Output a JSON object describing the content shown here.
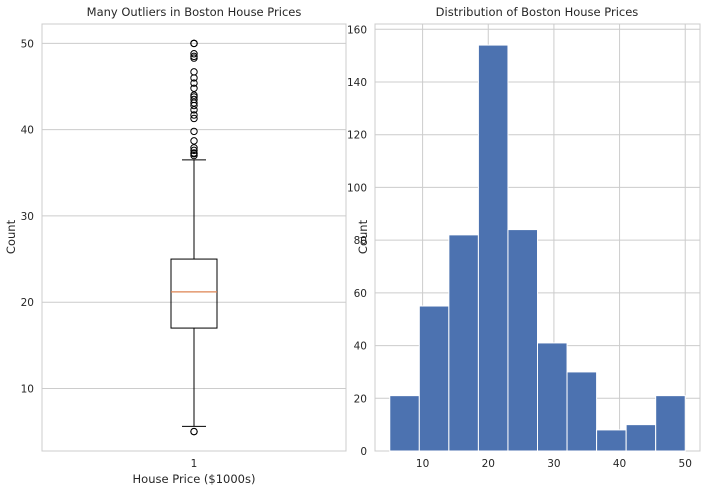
{
  "chart_data": [
    {
      "type": "box",
      "title": "Many Outliers in Boston House Prices",
      "xlabel": "House Price ($1000s)",
      "ylabel": "Count",
      "categories": [
        "1"
      ],
      "ylim": [
        2.75,
        52.25
      ],
      "yticks": [
        10,
        20,
        30,
        40,
        50
      ],
      "grid": true,
      "box": {
        "whisker_low": 5.6,
        "q1": 17.0,
        "median": 21.2,
        "q3": 25.0,
        "whisker_high": 36.5
      },
      "outliers": [
        5.0,
        5.0,
        37.0,
        37.2,
        37.3,
        37.6,
        37.9,
        38.7,
        39.8,
        41.3,
        41.7,
        42.3,
        42.8,
        43.1,
        43.5,
        43.8,
        44.0,
        44.8,
        45.4,
        46.0,
        46.7,
        48.3,
        48.5,
        48.8,
        50.0,
        50.0,
        50.0
      ],
      "colors": {
        "box": "#000000",
        "median": "#dd8452",
        "grid": "#cccccc"
      }
    },
    {
      "type": "histogram",
      "title": "Distribution of Boston House Prices",
      "xlabel": "",
      "ylabel": "Count",
      "bin_edges": [
        5,
        9.5,
        14,
        18.5,
        23,
        27.5,
        32,
        36.5,
        41,
        45.5,
        50
      ],
      "counts": [
        21,
        55,
        82,
        154,
        84,
        41,
        30,
        8,
        10,
        21
      ],
      "xlim": [
        2.75,
        52.25
      ],
      "ylim": [
        0,
        162
      ],
      "xticks": [
        10,
        20,
        30,
        40,
        50
      ],
      "yticks": [
        0,
        20,
        40,
        60,
        80,
        100,
        120,
        140,
        160
      ],
      "grid": true,
      "colors": {
        "bar": "#4c72b0",
        "grid": "#cccccc"
      }
    }
  ]
}
